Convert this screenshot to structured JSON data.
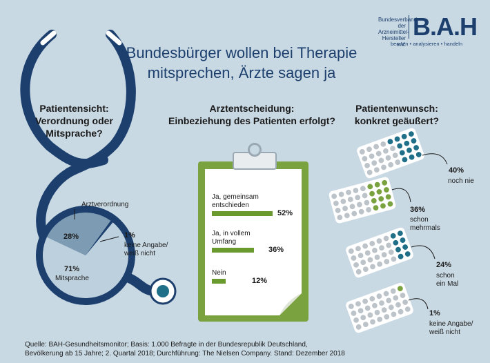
{
  "logo": {
    "name_line1": "Bundesverband",
    "name_line2": "der Arzneimittel-",
    "name_line3": "Hersteller e.V.",
    "mark": "B.A.H",
    "tagline": "beraten • analysieren • handeln"
  },
  "title_line1": "Bundesbürger wollen bei Therapie",
  "title_line2": "mitsprechen, Ärzte sagen ja",
  "source_line1": "Quelle: BAH-Gesundheitsmonitor; Basis: 1.000 Befragte in der Bundesrepublik Deutschland,",
  "source_line2": "Bevölkerung ab 15 Jahre; 2. Quartal 2018; Durchführung: The Nielsen Company. Stand: Dezember 2018",
  "chart_data": [
    {
      "type": "pie",
      "heading": [
        "Patientensicht:",
        "Verordnung oder",
        "Mitsprache?"
      ],
      "slices": [
        {
          "label": "Arztverordnung",
          "value": 28,
          "display": "28%",
          "color": "#7d9bb2"
        },
        {
          "label_lines": [
            "keine Angabe/",
            "weiß nicht"
          ],
          "value": 1,
          "display": "1%",
          "color": "#1c3f6e"
        },
        {
          "label": "Mitsprache",
          "value": 71,
          "display": "71%",
          "color": "#bdd0de"
        }
      ]
    },
    {
      "type": "bar",
      "heading": [
        "Arztentscheidung:",
        "Einbeziehung des Patienten erfolgt?"
      ],
      "xlim": [
        0,
        100
      ],
      "bars": [
        {
          "label_lines": [
            "Ja, gemeinsam",
            "entschieden"
          ],
          "value": 52,
          "display": "52%"
        },
        {
          "label_lines": [
            "Ja, in vollem",
            "Umfang"
          ],
          "value": 36,
          "display": "36%"
        },
        {
          "label_lines": [
            "Nein"
          ],
          "value": 12,
          "display": "12%"
        }
      ],
      "color": "#6a9a2e"
    },
    {
      "type": "bar",
      "heading": [
        "Patientenwunsch:",
        "konkret geäußert?"
      ],
      "items": [
        {
          "value": 40,
          "display": "40%",
          "label_lines": [
            "noch nie"
          ],
          "color": "#1f6f88"
        },
        {
          "value": 36,
          "display": "36%",
          "label_lines": [
            "schon",
            "mehrmals"
          ],
          "color": "#7aa23f"
        },
        {
          "value": 24,
          "display": "24%",
          "label_lines": [
            "schon",
            "ein Mal"
          ],
          "color": "#1f6f88"
        },
        {
          "value": 1,
          "display": "1%",
          "label_lines": [
            "keine Angabe/",
            "weiß nicht"
          ],
          "color": "#7aa23f"
        }
      ]
    }
  ]
}
